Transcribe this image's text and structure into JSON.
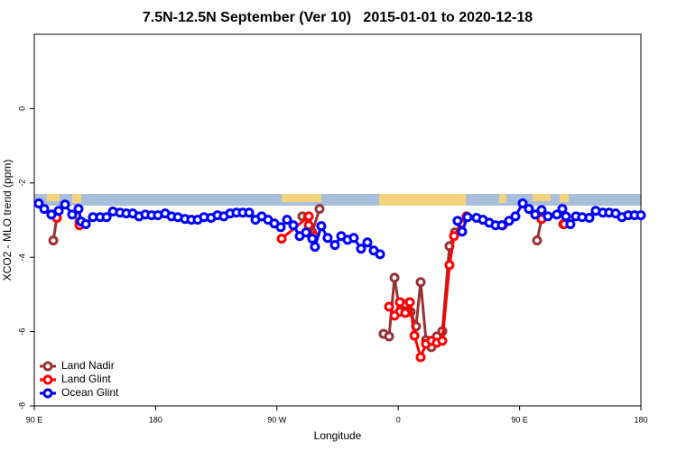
{
  "chart_data": {
    "type": "line",
    "title": "7.5N-12.5N September (Ver 10)   2015-01-01 to 2020-12-18",
    "x_label": "Longitude",
    "y_label": "XCO2 - MLO trend (ppm)",
    "xlim": [
      90,
      540
    ],
    "xticks": [
      {
        "value": 90,
        "label": "90 E"
      },
      180,
      {
        "value": 270,
        "label": "90 W"
      },
      {
        "value": 360,
        "label": "0"
      },
      {
        "value": 450,
        "label": "90 E"
      },
      {
        "value": 540,
        "label": "180"
      }
    ],
    "ylim": [
      -8,
      2
    ],
    "yticks": [
      -8,
      -6,
      -4,
      -2,
      0
    ],
    "legend": "bottom-left",
    "series": [
      {
        "name": "Land Nadir",
        "color": "#993333",
        "x": [
          104.1,
          106.7,
          115,
          123.5,
          200,
          288.9,
          292.9,
          296.2,
          301.6,
          330,
          349.1,
          353.2,
          357.2,
          361.2,
          365.2,
          369.2,
          373.2,
          376.6,
          380.6,
          384.6,
          388.6,
          392.7,
          398.0,
          402.0,
          420,
          437.5,
          450,
          463.0,
          466.3,
          475,
          482.4
        ],
        "values": [
          -3.55,
          -2.94,
          null,
          -3.04,
          null,
          -2.9,
          -2.92,
          -3.33,
          -2.7,
          null,
          -6.06,
          -6.13,
          -4.55,
          -5.47,
          -5.26,
          -5.47,
          -5.86,
          -4.67,
          -6.23,
          -6.42,
          -6.13,
          -5.99,
          -3.7,
          -3.33,
          null,
          -3.14,
          null,
          -3.55,
          -2.97,
          null,
          -3.11
        ]
      },
      {
        "name": "Land Glint",
        "color": "#ff0000",
        "x": [
          106.7,
          115,
          123.5,
          200,
          273.5,
          293.6,
          293.6,
          297.6,
          330,
          353.2,
          357.2,
          361.2,
          365.2,
          368.6,
          372.0,
          376.6,
          380.6,
          384.6,
          388.6,
          392.7,
          398.0,
          401.4,
          406.7,
          410.7,
          420,
          437.5,
          450,
          466.3,
          475,
          483.1
        ],
        "values": [
          -2.94,
          null,
          -3.14,
          null,
          -3.5,
          -2.9,
          -3.14,
          -3.43,
          null,
          -5.33,
          -5.57,
          -5.21,
          -5.5,
          -5.21,
          -6.11,
          -6.69,
          -6.33,
          -6.25,
          -6.3,
          -6.25,
          -4.21,
          -3.43,
          -3.09,
          -2.9,
          null,
          -3.14,
          null,
          -2.97,
          null,
          -3.11
        ]
      },
      {
        "name": "Ocean Glint",
        "color": "#0000ff",
        "x": [
          93.3,
          97.4,
          102.7,
          108.1,
          112.8,
          118.1,
          122.8,
          124.8,
          128.2,
          133.5,
          138.9,
          143.6,
          148.3,
          153.6,
          158.3,
          163.0,
          167.7,
          172.4,
          177.0,
          181.7,
          187.1,
          191.8,
          196.5,
          201.8,
          206.5,
          211.2,
          215.9,
          221.2,
          225.9,
          230.6,
          235.3,
          240.0,
          244.7,
          249.4,
          254.1,
          258.7,
          263.4,
          268.1,
          272.8,
          277.5,
          282.2,
          286.9,
          291.6,
          296.2,
          298.2,
          302.9,
          307.6,
          313.0,
          317.7,
          322.4,
          327.0,
          332.4,
          337.1,
          341.8,
          346.5,
          375,
          404.0,
          407.4,
          411.4,
          418.1,
          422.8,
          427.5,
          432.2,
          436.9,
          442.2,
          446.9,
          452.3,
          456.9,
          461.6,
          466.3,
          471.0,
          477.7,
          481.7,
          484.4,
          487.7,
          491.8,
          496.4,
          501.8,
          506.5,
          511.8,
          516.5,
          521.2,
          525.9,
          530.6,
          535.3,
          540.0
        ],
        "values": [
          -2.55,
          -2.7,
          -2.85,
          -2.75,
          -2.58,
          -2.85,
          -2.7,
          -3.04,
          -3.11,
          -2.92,
          -2.92,
          -2.92,
          -2.77,
          -2.8,
          -2.82,
          -2.82,
          -2.9,
          -2.85,
          -2.87,
          -2.87,
          -2.82,
          -2.9,
          -2.92,
          -2.97,
          -2.99,
          -2.99,
          -2.92,
          -2.94,
          -2.87,
          -2.9,
          -2.82,
          -2.8,
          -2.8,
          -2.8,
          -2.99,
          -2.9,
          -2.99,
          -3.09,
          -3.19,
          -2.99,
          -3.14,
          -3.43,
          -3.33,
          -3.5,
          -3.72,
          -3.16,
          -3.48,
          -3.67,
          -3.43,
          -3.53,
          -3.48,
          -3.77,
          -3.6,
          -3.82,
          -3.92,
          null,
          -3.02,
          -3.31,
          -2.92,
          -2.94,
          -2.99,
          -3.07,
          -3.14,
          -3.14,
          -3.02,
          -2.9,
          -2.55,
          -2.7,
          -2.85,
          -2.73,
          -2.9,
          -2.85,
          -2.7,
          -2.9,
          -3.11,
          -2.9,
          -2.92,
          -2.94,
          -2.75,
          -2.8,
          -2.8,
          -2.82,
          -2.92,
          -2.87,
          -2.87,
          -2.87
        ]
      }
    ]
  }
}
